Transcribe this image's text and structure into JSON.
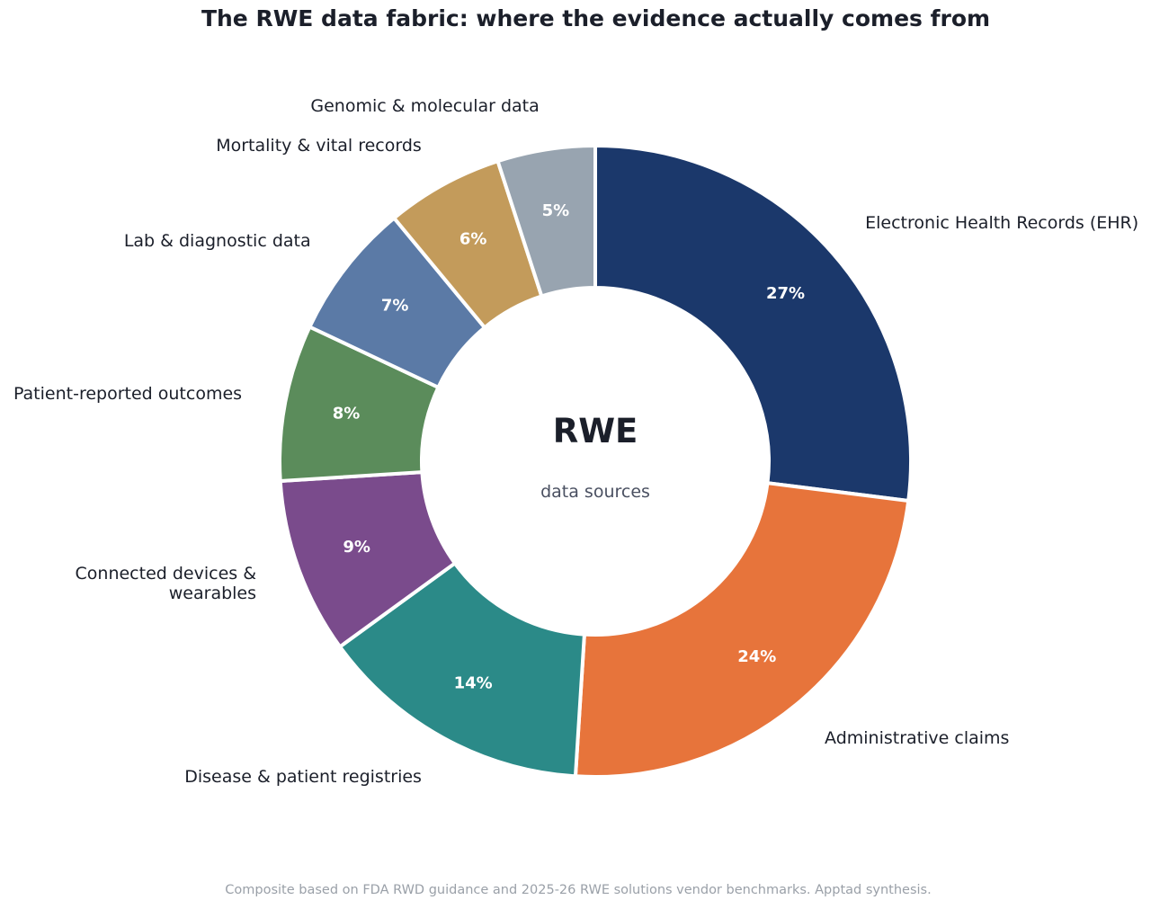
{
  "title": "The RWE data fabric: where the evidence actually comes from",
  "center": {
    "label": "RWE",
    "sublabel": "data sources"
  },
  "footnote": "Composite based on FDA RWD guidance and 2025-26 RWE solutions vendor benchmarks. Apptad synthesis.",
  "chart_data": {
    "type": "pie",
    "subtype": "donut",
    "start": "12 o'clock, clockwise",
    "slices": [
      {
        "label": "Electronic Health Records (EHR)",
        "value": 27,
        "value_label": "27%",
        "color": "#1b386b"
      },
      {
        "label": "Administrative claims",
        "value": 24,
        "value_label": "24%",
        "color": "#e7743b"
      },
      {
        "label": "Disease & patient registries",
        "value": 14,
        "value_label": "14%",
        "color": "#2b8a88"
      },
      {
        "label": "Connected devices &\nwearables",
        "value": 9,
        "value_label": "9%",
        "color": "#7a4b8c"
      },
      {
        "label": "Patient-reported outcomes",
        "value": 8,
        "value_label": "8%",
        "color": "#5b8c5b"
      },
      {
        "label": "Lab & diagnostic data",
        "value": 7,
        "value_label": "7%",
        "color": "#5b7aa6"
      },
      {
        "label": "Mortality & vital records",
        "value": 6,
        "value_label": "6%",
        "color": "#c39b5b"
      },
      {
        "label": "Genomic & molecular data",
        "value": 5,
        "value_label": "5%",
        "color": "#98a4b0"
      }
    ]
  }
}
